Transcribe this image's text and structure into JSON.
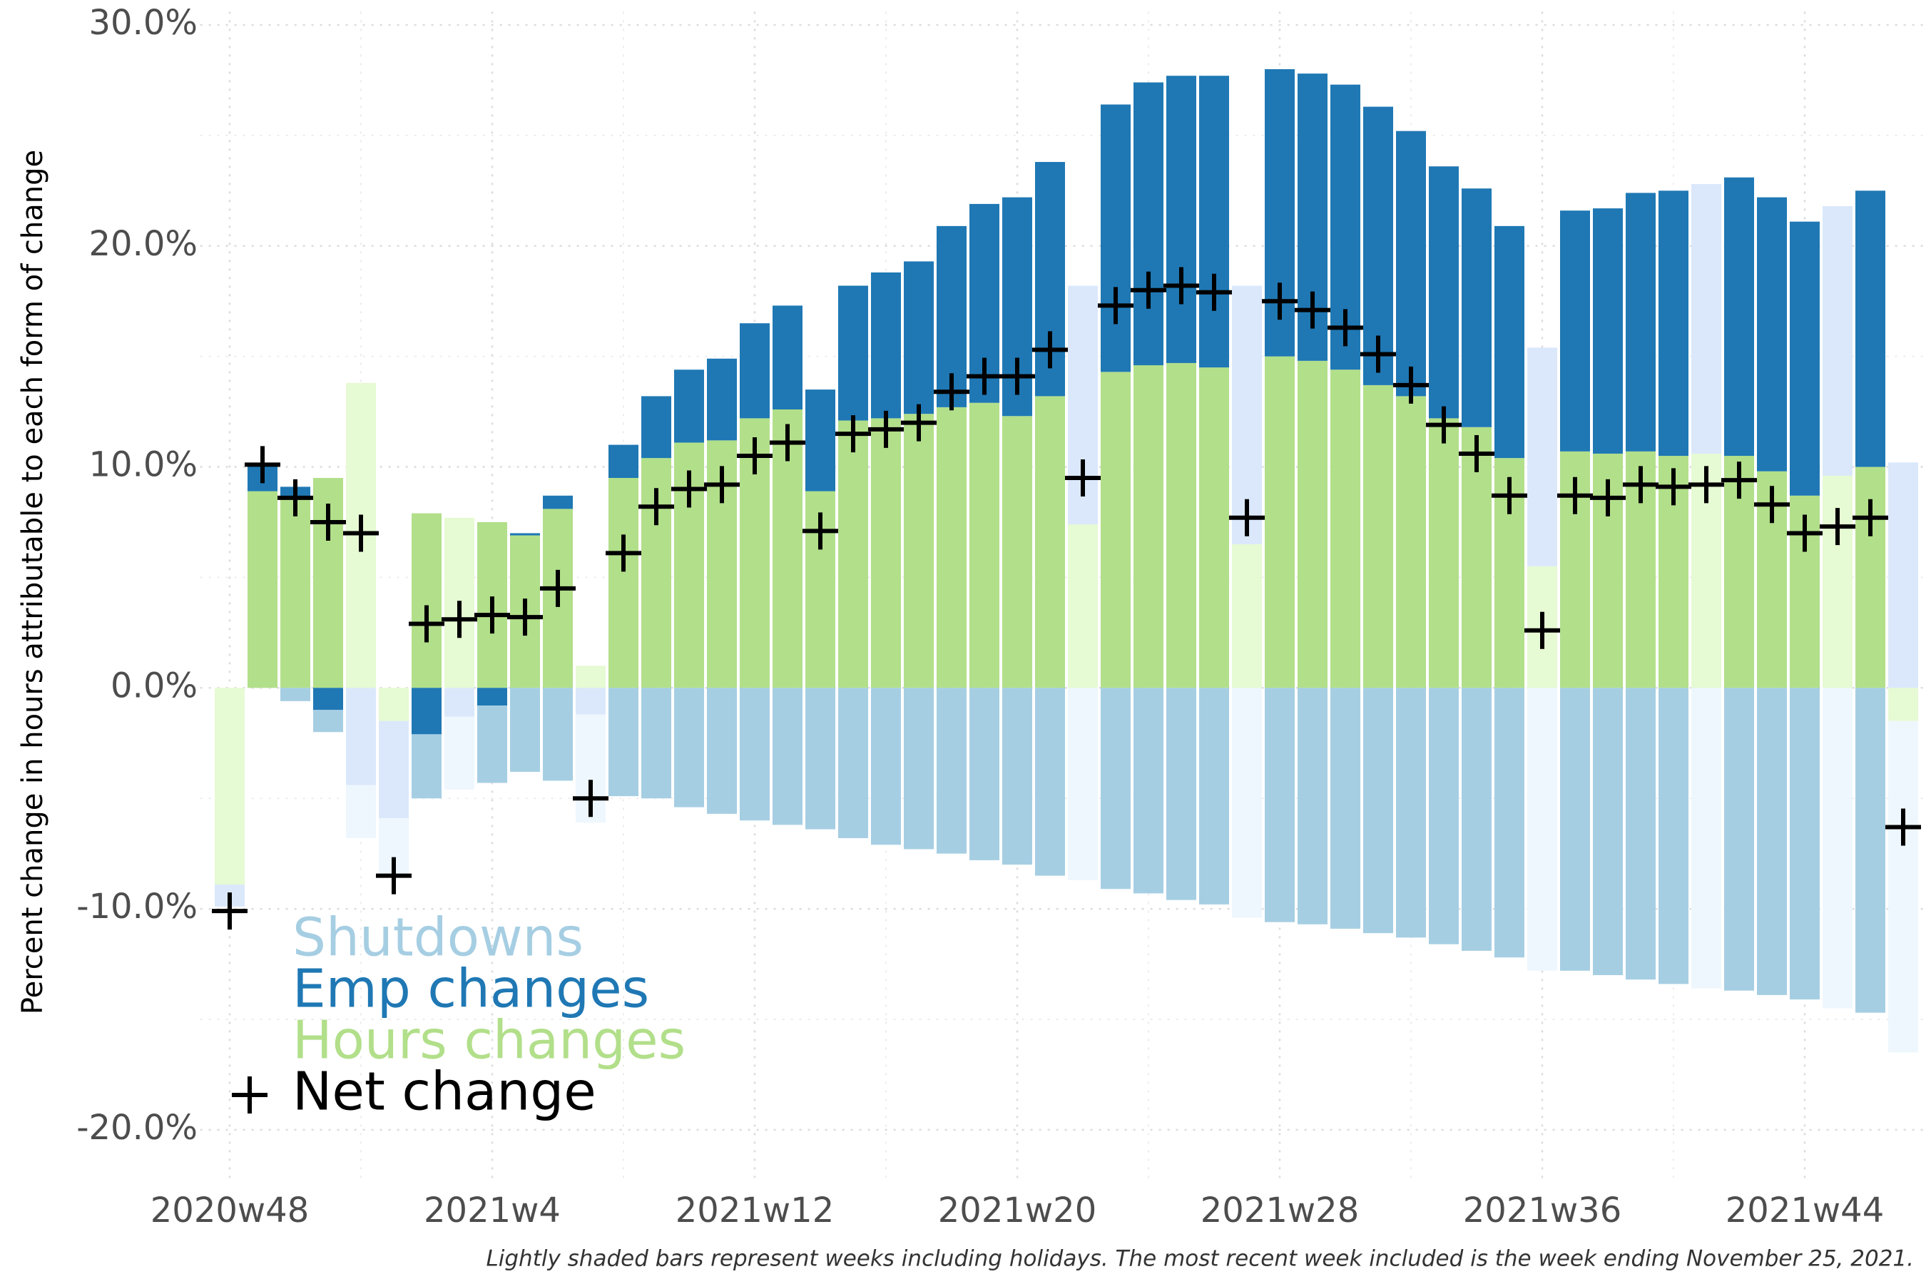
{
  "chart_data": {
    "type": "stacked_bar",
    "y_label": "Percent change in hours attributable to each form of change",
    "note": "Lightly shaded bars represent weeks including holidays. The most recent week included is the week ending November 25, 2021.",
    "categories": [
      "2020w48",
      null,
      null,
      null,
      null,
      null,
      null,
      null,
      "2021w4",
      null,
      null,
      null,
      null,
      null,
      null,
      null,
      "2021w12",
      null,
      null,
      null,
      null,
      null,
      null,
      null,
      "2021w20",
      null,
      null,
      null,
      null,
      null,
      null,
      null,
      "2021w28",
      null,
      null,
      null,
      null,
      null,
      null,
      null,
      "2021w36",
      null,
      null,
      null,
      null,
      null,
      null,
      null,
      "2021w44",
      null,
      null,
      null
    ],
    "shaded": [
      true,
      false,
      false,
      false,
      true,
      true,
      false,
      true,
      false,
      false,
      false,
      true,
      false,
      false,
      false,
      false,
      false,
      false,
      false,
      false,
      false,
      false,
      false,
      false,
      false,
      false,
      true,
      false,
      false,
      false,
      false,
      true,
      false,
      false,
      false,
      false,
      false,
      false,
      false,
      false,
      true,
      false,
      false,
      false,
      false,
      true,
      false,
      false,
      false,
      true,
      false,
      true
    ],
    "series": [
      {
        "name": "Hours changes",
        "color": "#b2df8a",
        "light_color": "#e6fad3",
        "values": [
          -8.9,
          8.9,
          8.6,
          9.5,
          13.8,
          -1.5,
          7.9,
          7.7,
          7.5,
          6.9,
          8.1,
          1.0,
          9.5,
          10.4,
          11.1,
          11.2,
          12.2,
          12.6,
          8.9,
          12.1,
          12.2,
          12.4,
          12.7,
          12.9,
          12.3,
          13.2,
          7.4,
          14.3,
          14.6,
          14.7,
          14.5,
          6.5,
          15.0,
          14.8,
          14.4,
          13.7,
          13.2,
          12.2,
          11.8,
          10.4,
          5.5,
          10.7,
          10.6,
          10.7,
          10.5,
          10.6,
          10.5,
          9.8,
          8.7,
          9.6,
          10.0,
          -1.5
        ]
      },
      {
        "name": "Emp changes",
        "color": "#1f78b4",
        "light_color": "#dbe8fb",
        "values": [
          -1.0,
          1.2,
          0.5,
          -1.0,
          -4.4,
          -4.4,
          -2.1,
          -1.3,
          -0.8,
          0.1,
          0.6,
          -1.2,
          1.5,
          2.8,
          3.3,
          3.7,
          4.3,
          4.7,
          4.6,
          6.1,
          6.6,
          6.9,
          8.2,
          9.0,
          9.9,
          10.6,
          10.8,
          12.1,
          12.8,
          13.0,
          13.2,
          11.7,
          13.0,
          13.0,
          12.9,
          12.6,
          12.0,
          11.4,
          10.8,
          10.5,
          9.9,
          10.9,
          11.1,
          11.7,
          12.0,
          12.2,
          12.6,
          12.4,
          12.4,
          12.2,
          12.5,
          10.2
        ]
      },
      {
        "name": "Shutdowns",
        "color": "#a6cee3",
        "light_color": "#eef7fd",
        "values": [
          0,
          0,
          -0.6,
          -1.0,
          -2.4,
          -2.6,
          -2.9,
          -3.3,
          -3.5,
          -3.8,
          -4.2,
          -4.9,
          -4.9,
          -5.0,
          -5.4,
          -5.7,
          -6.0,
          -6.2,
          -6.4,
          -6.8,
          -7.1,
          -7.3,
          -7.5,
          -7.8,
          -8.0,
          -8.5,
          -8.7,
          -9.1,
          -9.3,
          -9.6,
          -9.8,
          -10.4,
          -10.6,
          -10.7,
          -10.9,
          -11.1,
          -11.3,
          -11.6,
          -11.9,
          -12.2,
          -12.8,
          -12.8,
          -13.0,
          -13.2,
          -13.4,
          -13.6,
          -13.7,
          -13.9,
          -14.1,
          -14.5,
          -14.7,
          -15.0
        ]
      }
    ],
    "net": {
      "name": "Net change",
      "color": "#000000",
      "values": [
        -10.1,
        10.1,
        8.6,
        7.5,
        7.0,
        -8.5,
        2.9,
        3.1,
        3.3,
        3.2,
        4.5,
        -5.0,
        6.1,
        8.2,
        9.0,
        9.2,
        10.5,
        11.1,
        7.1,
        11.5,
        11.7,
        12.0,
        13.4,
        14.1,
        14.1,
        15.3,
        9.5,
        17.3,
        18.0,
        18.2,
        17.9,
        7.7,
        17.5,
        17.1,
        16.3,
        15.1,
        13.7,
        11.9,
        10.6,
        8.7,
        2.6,
        8.7,
        8.6,
        9.2,
        9.1,
        9.2,
        9.4,
        8.3,
        7.0,
        7.3,
        7.7,
        -6.3
      ]
    },
    "ylim": [
      -22.2,
      30.6
    ],
    "yticks": [
      {
        "value": 30,
        "label": "30.0%"
      },
      {
        "value": 20,
        "label": "20.0%"
      },
      {
        "value": 10,
        "label": "10.0%"
      },
      {
        "value": 0,
        "label": "0.0%"
      },
      {
        "value": -10,
        "label": "-10.0%"
      },
      {
        "value": -20,
        "label": "-20.0%"
      }
    ],
    "grid": true,
    "legend": "bottom-left"
  }
}
